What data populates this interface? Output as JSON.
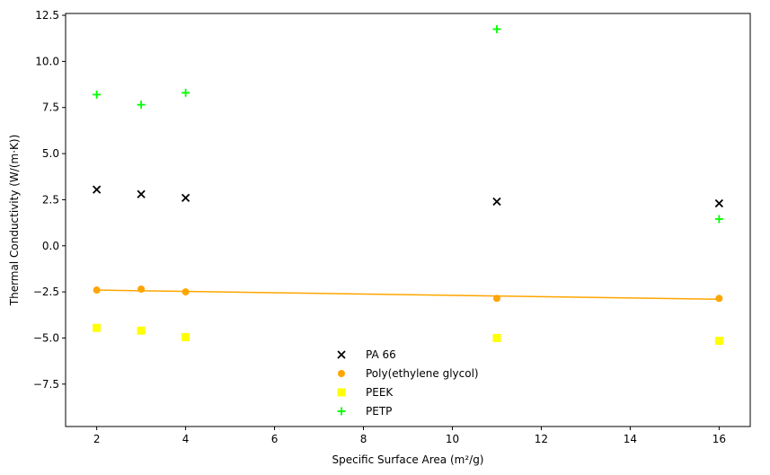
{
  "chart_data": {
    "type": "scatter",
    "title": "",
    "xlabel": "Specific Surface Area (m²/g)",
    "ylabel": "Thermal Conductivity (W/(m·K))",
    "xlim": [
      1.3,
      16.7
    ],
    "ylim": [
      -9.8,
      12.6
    ],
    "xticks": [
      2,
      4,
      6,
      8,
      10,
      12,
      14,
      16
    ],
    "yticks": [
      -7.5,
      -5.0,
      -2.5,
      0.0,
      2.5,
      5.0,
      7.5,
      10.0,
      12.5
    ],
    "xtick_labels": [
      "2",
      "4",
      "6",
      "8",
      "10",
      "12",
      "14",
      "16"
    ],
    "ytick_labels": [
      "−7.5",
      "−5.0",
      "−2.5",
      "0.0",
      "2.5",
      "5.0",
      "7.5",
      "10.0",
      "12.5"
    ],
    "grid": false,
    "legend_position": "lower-center",
    "series": [
      {
        "name": "PA 66",
        "marker": "x",
        "color": "#000000",
        "x": [
          2,
          3,
          4,
          11,
          16
        ],
        "y": [
          3.05,
          2.8,
          2.6,
          2.4,
          2.3
        ]
      },
      {
        "name": "Poly(ethylene glycol)",
        "marker": "circle",
        "color": "#FFA500",
        "x": [
          2,
          3,
          4,
          11,
          16
        ],
        "y": [
          -2.4,
          -2.35,
          -2.5,
          -2.85,
          -2.85
        ]
      },
      {
        "name": "PEEK",
        "marker": "square",
        "color": "#FFFF00",
        "x": [
          2,
          3,
          4,
          11,
          16
        ],
        "y": [
          -4.45,
          -4.6,
          -4.95,
          -5.0,
          -5.15
        ]
      },
      {
        "name": "PETP",
        "marker": "plus",
        "color": "#00FF00",
        "x": [
          2,
          3,
          4,
          11,
          16
        ],
        "y": [
          8.2,
          7.65,
          8.3,
          11.75,
          1.45
        ]
      }
    ],
    "trend_line": {
      "series": "Poly(ethylene glycol)",
      "color": "#FFA500",
      "x": [
        2,
        16
      ],
      "y": [
        -2.4,
        -2.9
      ]
    }
  }
}
